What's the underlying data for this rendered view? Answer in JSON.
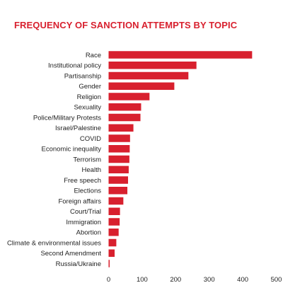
{
  "chart_data": {
    "type": "bar",
    "orientation": "horizontal",
    "title": "FREQUENCY OF SANCTION ATTEMPTS BY TOPIC",
    "xlabel": "",
    "ylabel": "",
    "categories": [
      "Race",
      "Institutional policy",
      "Partisanship",
      "Gender",
      "Religion",
      "Sexuality",
      "Police/Military Protests",
      "Israel/Palestine",
      "COVID",
      "Economic inequality",
      "Terrorism",
      "Health",
      "Free speech",
      "Elections",
      "Foreign affairs",
      "Court/Trial",
      "Immigration",
      "Abortion",
      "Climate & environmental issues",
      "Second Amendment",
      "Russia/Ukraine"
    ],
    "values": [
      428,
      262,
      238,
      196,
      122,
      97,
      95,
      74,
      64,
      63,
      62,
      60,
      58,
      56,
      44,
      34,
      33,
      30,
      23,
      18,
      3
    ],
    "xlim": [
      0,
      500
    ],
    "xticks": [
      0,
      100,
      200,
      300,
      400,
      500
    ],
    "grid": false,
    "legend": "none",
    "colors": {
      "bar": "#d8202e",
      "title": "#d8202e",
      "text": "#1f1f1f",
      "background": "#ffffff"
    }
  }
}
